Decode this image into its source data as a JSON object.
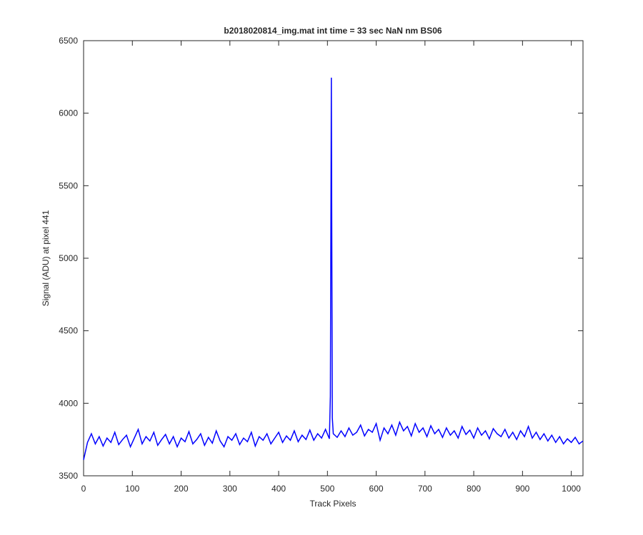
{
  "chart_data": {
    "type": "line",
    "title": "b2018020814_img.mat int time = 33 sec  NaN nm BS06",
    "x_label": "Track Pixels",
    "y_label": "Signal (ADU) at pixel 441",
    "xlim": [
      0,
      1024
    ],
    "ylim": [
      3500,
      6500
    ],
    "xticks": [
      0,
      100,
      200,
      300,
      400,
      500,
      600,
      700,
      800,
      900,
      1000
    ],
    "yticks": [
      3500,
      4000,
      4500,
      5000,
      5500,
      6000,
      6500
    ],
    "series": [
      {
        "color": "#0000ff",
        "x": [
          0,
          8,
          16,
          24,
          32,
          40,
          48,
          56,
          64,
          72,
          80,
          88,
          96,
          104,
          112,
          120,
          128,
          136,
          144,
          152,
          160,
          168,
          176,
          184,
          192,
          200,
          208,
          216,
          224,
          232,
          240,
          248,
          256,
          264,
          272,
          280,
          288,
          296,
          304,
          312,
          320,
          328,
          336,
          344,
          352,
          360,
          368,
          376,
          384,
          392,
          400,
          408,
          416,
          424,
          432,
          440,
          448,
          456,
          464,
          472,
          480,
          488,
          496,
          504,
          506,
          508,
          510,
          512,
          520,
          528,
          536,
          544,
          552,
          560,
          568,
          576,
          584,
          592,
          600,
          608,
          616,
          624,
          632,
          640,
          648,
          656,
          664,
          672,
          680,
          688,
          696,
          704,
          712,
          720,
          728,
          736,
          744,
          752,
          760,
          768,
          776,
          784,
          792,
          800,
          808,
          816,
          824,
          832,
          840,
          848,
          856,
          864,
          872,
          880,
          888,
          896,
          904,
          912,
          920,
          928,
          936,
          944,
          952,
          960,
          968,
          976,
          984,
          992,
          1000,
          1008,
          1016,
          1024
        ],
        "values": [
          3610,
          3730,
          3790,
          3720,
          3770,
          3705,
          3760,
          3730,
          3800,
          3715,
          3750,
          3780,
          3700,
          3760,
          3820,
          3720,
          3770,
          3740,
          3800,
          3710,
          3750,
          3785,
          3720,
          3770,
          3700,
          3760,
          3735,
          3805,
          3720,
          3750,
          3790,
          3710,
          3765,
          3725,
          3810,
          3740,
          3700,
          3770,
          3745,
          3790,
          3715,
          3760,
          3735,
          3800,
          3705,
          3770,
          3745,
          3790,
          3720,
          3760,
          3800,
          3730,
          3775,
          3745,
          3810,
          3735,
          3780,
          3750,
          3815,
          3745,
          3790,
          3760,
          3820,
          3755,
          4050,
          6245,
          3900,
          3790,
          3765,
          3810,
          3770,
          3830,
          3780,
          3800,
          3850,
          3775,
          3820,
          3800,
          3860,
          3745,
          3830,
          3790,
          3850,
          3780,
          3870,
          3810,
          3840,
          3775,
          3860,
          3800,
          3830,
          3770,
          3845,
          3790,
          3820,
          3765,
          3830,
          3780,
          3810,
          3760,
          3840,
          3785,
          3815,
          3760,
          3830,
          3780,
          3810,
          3755,
          3825,
          3790,
          3770,
          3820,
          3760,
          3800,
          3750,
          3810,
          3770,
          3840,
          3760,
          3800,
          3750,
          3790,
          3740,
          3780,
          3730,
          3770,
          3720,
          3755,
          3730,
          3765,
          3720,
          3740
        ]
      }
    ]
  }
}
